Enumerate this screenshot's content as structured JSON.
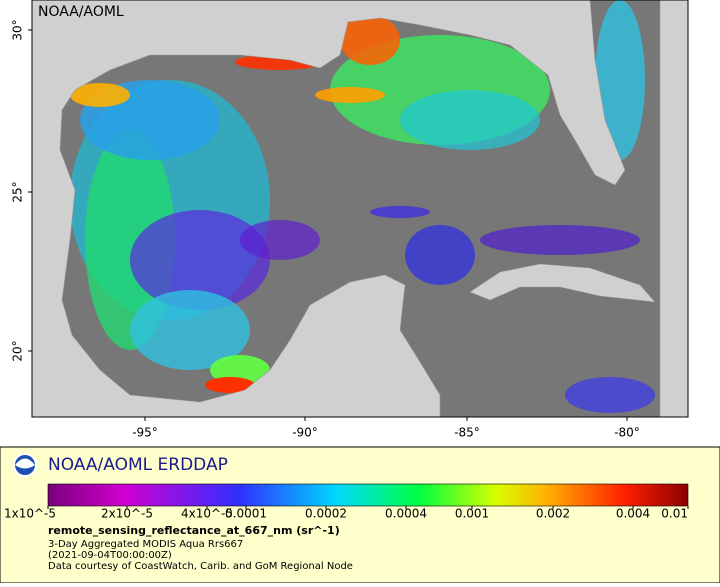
{
  "map": {
    "watermark": "NOAA/AOML",
    "lat_ticks": [
      "30°",
      "25°",
      "20°"
    ],
    "lon_ticks": [
      "-95°",
      "-90°",
      "-85°",
      "-80°"
    ]
  },
  "legend": {
    "title": "NOAA/AOML ERDDAP",
    "colorbar_labels": [
      "1x10^-5",
      "2x10^-5",
      "4x10^-5",
      "0.0001",
      "0.0002",
      "0.0004",
      "0.001",
      "0.002",
      "0.004",
      "0.01"
    ],
    "variable": "remote_sensing_reflectance_at_667_nm (sr^-1)",
    "lines": [
      "3-Day Aggregated MODIS Aqua Rrs667",
      "(2021-09-04T00:00:00Z)",
      "Data courtesy of CoastWatch, Carib. and GoM Regional Node"
    ]
  }
}
